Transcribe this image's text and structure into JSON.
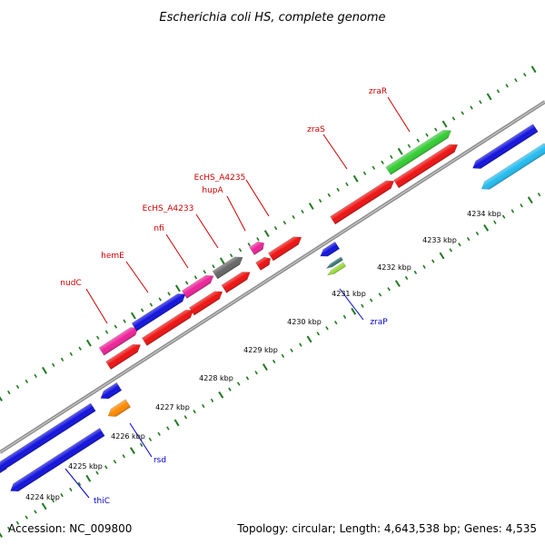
{
  "header": {
    "title": "Escherichia coli HS, complete genome"
  },
  "footer": {
    "accession": "Accession: NC_009800",
    "summary": "Topology: circular; Length: 4,643,538 bp; Genes: 4,535"
  },
  "colors": {
    "backbone": "#8c8c8c",
    "tick": "#1f7a1f",
    "label_forward": "#cc0000",
    "label_reverse": "#0000cc",
    "red": "#ee1111",
    "blue": "#1111dd",
    "magenta": "#ee2299",
    "green": "#33cc33",
    "gray": "#666666",
    "cyan": "#22bbee",
    "orange": "#ff8800",
    "lime": "#99dd33",
    "teal": "#337777"
  },
  "scale": {
    "labels": [
      "4224 kbp",
      "4225 kbp",
      "4226 kbp",
      "4227 kbp",
      "4228 kbp",
      "4229 kbp",
      "4230 kbp",
      "4231 kbp",
      "4232 kbp",
      "4233 kbp",
      "4234 kbp"
    ]
  },
  "genes": {
    "forward": [
      "nudC",
      "hemE",
      "nfi",
      "EcHS_A4233",
      "hupA",
      "EcHS_A4235",
      "zraS",
      "zraR"
    ],
    "reverse": [
      "thiC",
      "rsd",
      "zraP"
    ]
  }
}
